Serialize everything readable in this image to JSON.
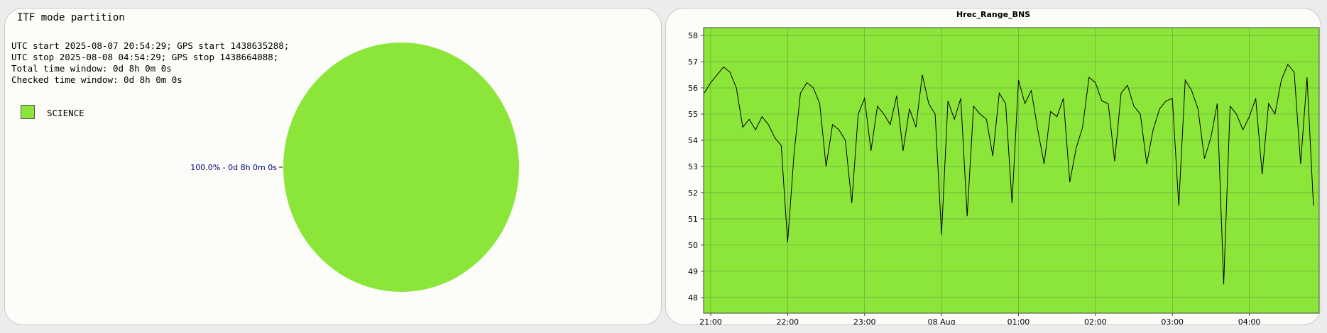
{
  "pie_panel": {
    "title": "ITF mode partition",
    "info_lines": [
      "UTC start 2025-08-07 20:54:29; GPS start 1438635288;",
      "UTC stop 2025-08-08 04:54:29; GPS stop 1438664088;",
      "Total time window: 0d 8h 0m 0s",
      "Checked time window: 0d 8h 0m 0s"
    ],
    "legend": [
      {
        "label": "SCIENCE",
        "color": "#8ce63a"
      }
    ],
    "slice_label": "100.0% - 0d 8h 0m 0s"
  },
  "chart_data": [
    {
      "type": "pie",
      "slices": [
        {
          "label": "SCIENCE",
          "value": 100.0,
          "color": "#8ce63a"
        }
      ],
      "legend_position": "left"
    },
    {
      "type": "line",
      "title": "Hrec_Range_BNS",
      "xlabel": "",
      "ylabel": "",
      "x_ticks": [
        "21:00",
        "22:00",
        "23:00",
        "08 Aug",
        "01:00",
        "02:00",
        "03:00",
        "04:00"
      ],
      "y_ticks": [
        48,
        49,
        50,
        51,
        52,
        53,
        54,
        55,
        56,
        57,
        58
      ],
      "xlim": [
        "2025-08-07 20:54:29",
        "2025-08-08 04:54:29"
      ],
      "ylim": [
        47.4,
        58.3
      ],
      "grid": true,
      "background_color": "#8ce63a",
      "line_color": "#000000",
      "series": [
        {
          "x": [
            "20:55",
            "21:00",
            "21:05",
            "21:10",
            "21:15",
            "21:20",
            "21:25",
            "21:30",
            "21:35",
            "21:40",
            "21:45",
            "21:50",
            "21:55",
            "22:00",
            "22:05",
            "22:10",
            "22:15",
            "22:20",
            "22:25",
            "22:30",
            "22:35",
            "22:40",
            "22:45",
            "22:50",
            "22:55",
            "23:00",
            "23:05",
            "23:10",
            "23:15",
            "23:20",
            "23:25",
            "23:30",
            "23:35",
            "23:40",
            "23:45",
            "23:50",
            "23:55",
            "00:00",
            "00:05",
            "00:10",
            "00:15",
            "00:20",
            "00:25",
            "00:30",
            "00:35",
            "00:40",
            "00:45",
            "00:50",
            "00:55",
            "01:00",
            "01:05",
            "01:10",
            "01:15",
            "01:20",
            "01:25",
            "01:30",
            "01:35",
            "01:40",
            "01:45",
            "01:50",
            "01:55",
            "02:00",
            "02:05",
            "02:10",
            "02:15",
            "02:20",
            "02:25",
            "02:30",
            "02:35",
            "02:40",
            "02:45",
            "02:50",
            "02:55",
            "03:00",
            "03:05",
            "03:10",
            "03:15",
            "03:20",
            "03:25",
            "03:30",
            "03:35",
            "03:40",
            "03:45",
            "03:50",
            "03:55",
            "04:00",
            "04:05",
            "04:10",
            "04:15",
            "04:20",
            "04:25",
            "04:30",
            "04:35",
            "04:40",
            "04:45",
            "04:50"
          ],
          "values": [
            55.8,
            56.2,
            56.5,
            56.8,
            56.6,
            56.0,
            54.5,
            54.8,
            54.4,
            54.9,
            54.6,
            54.1,
            53.8,
            50.1,
            53.5,
            55.8,
            56.2,
            56.0,
            55.4,
            53.0,
            54.6,
            54.4,
            54.0,
            51.6,
            55.0,
            55.6,
            53.6,
            55.3,
            55.0,
            54.6,
            55.7,
            53.6,
            55.2,
            54.5,
            56.5,
            55.4,
            55.0,
            50.4,
            55.5,
            54.8,
            55.6,
            51.1,
            55.3,
            55.0,
            54.8,
            53.4,
            55.8,
            55.4,
            51.6,
            56.3,
            55.4,
            55.9,
            54.4,
            53.1,
            55.1,
            54.9,
            55.6,
            52.4,
            53.7,
            54.5,
            56.4,
            56.2,
            55.5,
            55.4,
            53.2,
            55.8,
            56.1,
            55.3,
            55.0,
            53.1,
            54.4,
            55.2,
            55.5,
            55.6,
            51.5,
            56.3,
            55.9,
            55.2,
            53.3,
            54.1,
            55.4,
            48.5,
            55.3,
            55.0,
            54.4,
            54.9,
            55.6,
            52.7,
            55.4,
            55.0,
            56.3,
            56.9,
            56.6,
            53.1,
            56.4,
            51.5
          ]
        }
      ]
    }
  ]
}
